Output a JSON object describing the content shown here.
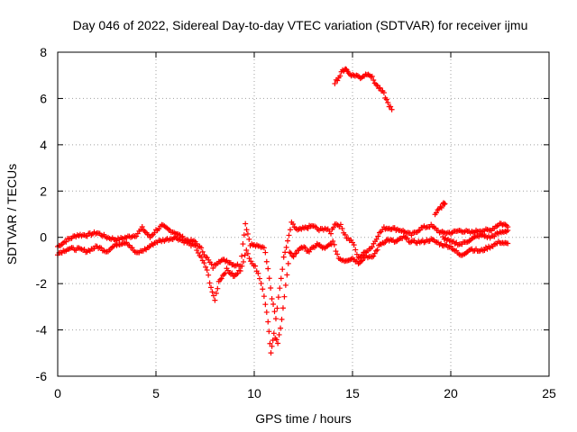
{
  "chart_data": {
    "type": "scatter",
    "title": "Day 046 of 2022, Sidereal Day-to-day VTEC variation (SDTVAR) for receiver ijmu",
    "xlabel": "GPS time / hours",
    "ylabel": "SDTVAR / TECUs",
    "xlim": [
      0,
      25
    ],
    "ylim": [
      -6,
      8
    ],
    "xticks": [
      0,
      5,
      10,
      15,
      20,
      25
    ],
    "yticks": [
      -6,
      -4,
      -2,
      0,
      2,
      4,
      6,
      8
    ],
    "grid": true,
    "marker": "+",
    "series": [
      {
        "name": "SDTVAR",
        "color": "#ff0000",
        "segments": [
          {
            "name": "main-upper",
            "points": [
              [
                0,
                -0.4
              ],
              [
                0.5,
                -0.1
              ],
              [
                1,
                0.1
              ],
              [
                1.5,
                0.1
              ],
              [
                2,
                0.2
              ],
              [
                2.5,
                0.0
              ],
              [
                3,
                -0.1
              ],
              [
                3.5,
                0.0
              ],
              [
                4,
                0.1
              ],
              [
                4.3,
                0.4
              ],
              [
                4.7,
                0.0
              ],
              [
                5,
                0.3
              ],
              [
                5.3,
                0.5
              ],
              [
                5.7,
                0.3
              ],
              [
                6,
                0.2
              ],
              [
                6.5,
                -0.1
              ],
              [
                7,
                -0.2
              ],
              [
                7.3,
                -0.5
              ],
              [
                7.6,
                -0.9
              ],
              [
                7.9,
                -1.3
              ],
              [
                8.2,
                -1.0
              ],
              [
                8.6,
                -1.0
              ],
              [
                9,
                -1.2
              ],
              [
                9.3,
                -1.2
              ],
              [
                9.55,
                0.6
              ],
              [
                9.8,
                -0.3
              ],
              [
                10.2,
                -0.4
              ],
              [
                10.5,
                -0.4
              ],
              [
                10.7,
                -1.3
              ],
              [
                10.9,
                -2.6
              ],
              [
                11.1,
                -3.5
              ],
              [
                11.3,
                -2.2
              ],
              [
                11.5,
                -0.9
              ],
              [
                11.7,
                -0.2
              ],
              [
                11.9,
                0.6
              ],
              [
                12.2,
                0.3
              ],
              [
                12.6,
                0.4
              ],
              [
                13,
                0.5
              ],
              [
                13.3,
                0.3
              ],
              [
                13.6,
                0.4
              ],
              [
                13.9,
                0.2
              ],
              [
                14.1,
                0.6
              ],
              [
                14.4,
                0.5
              ],
              [
                14.7,
                0.0
              ],
              [
                15,
                -0.2
              ],
              [
                15.3,
                -0.9
              ],
              [
                15.7,
                -0.6
              ],
              [
                16,
                -0.4
              ],
              [
                16.3,
                0.1
              ],
              [
                16.6,
                0.4
              ],
              [
                17,
                0.4
              ],
              [
                17.5,
                0.3
              ],
              [
                18,
                0.1
              ],
              [
                18.5,
                0.4
              ],
              [
                19,
                0.5
              ],
              [
                19.5,
                0.2
              ],
              [
                20,
                0.2
              ],
              [
                20.5,
                0.3
              ],
              [
                21,
                0.2
              ],
              [
                21.5,
                0.3
              ],
              [
                22,
                0.3
              ],
              [
                22.5,
                0.6
              ],
              [
                22.9,
                0.5
              ]
            ]
          },
          {
            "name": "main-lower",
            "points": [
              [
                0,
                -0.7
              ],
              [
                0.5,
                -0.5
              ],
              [
                1,
                -0.5
              ],
              [
                1.5,
                -0.6
              ],
              [
                2,
                -0.4
              ],
              [
                2.5,
                -0.6
              ],
              [
                3,
                -0.3
              ],
              [
                3.5,
                -0.2
              ],
              [
                4,
                -0.7
              ],
              [
                4.5,
                -0.5
              ],
              [
                5,
                -0.2
              ],
              [
                5.5,
                -0.1
              ],
              [
                6,
                0.0
              ],
              [
                6.5,
                -0.2
              ],
              [
                7,
                -0.4
              ],
              [
                7.3,
                -0.9
              ],
              [
                7.6,
                -1.4
              ],
              [
                7.8,
                -2.2
              ],
              [
                8,
                -2.7
              ],
              [
                8.2,
                -1.9
              ],
              [
                8.6,
                -1.4
              ],
              [
                9,
                -1.7
              ],
              [
                9.3,
                -1.4
              ],
              [
                9.6,
                -0.6
              ],
              [
                9.9,
                -1.1
              ],
              [
                10.2,
                -1.5
              ],
              [
                10.5,
                -2.5
              ],
              [
                10.7,
                -3.6
              ],
              [
                10.85,
                -5.0
              ],
              [
                11,
                -4.2
              ],
              [
                11.2,
                -4.6
              ],
              [
                11.4,
                -3.5
              ],
              [
                11.6,
                -2.1
              ],
              [
                11.8,
                -0.7
              ],
              [
                12,
                -0.8
              ],
              [
                12.4,
                -0.4
              ],
              [
                12.8,
                -0.6
              ],
              [
                13.2,
                -0.3
              ],
              [
                13.6,
                -0.5
              ],
              [
                14,
                -0.2
              ],
              [
                14.3,
                -0.9
              ],
              [
                14.6,
                -1.0
              ],
              [
                15,
                -0.9
              ],
              [
                15.3,
                -1.1
              ],
              [
                15.7,
                -0.8
              ],
              [
                16,
                -0.9
              ],
              [
                16.4,
                -0.3
              ],
              [
                16.8,
                -0.1
              ],
              [
                17.2,
                -0.2
              ],
              [
                17.6,
                0.0
              ],
              [
                18,
                -0.2
              ],
              [
                18.5,
                -0.2
              ],
              [
                19,
                -0.1
              ],
              [
                19.5,
                -0.3
              ],
              [
                20,
                -0.4
              ],
              [
                20.5,
                -0.8
              ],
              [
                21,
                -0.5
              ],
              [
                21.5,
                -0.6
              ],
              [
                22,
                -0.4
              ],
              [
                22.5,
                -0.2
              ],
              [
                22.9,
                -0.3
              ]
            ]
          },
          {
            "name": "evening-middle",
            "points": [
              [
                19.6,
                0.0
              ],
              [
                20,
                -0.2
              ],
              [
                20.5,
                -0.3
              ],
              [
                21,
                -0.1
              ],
              [
                21.5,
                0.1
              ],
              [
                22,
                0.0
              ],
              [
                22.5,
                0.2
              ],
              [
                22.9,
                0.3
              ]
            ]
          },
          {
            "name": "short-rise",
            "points": [
              [
                19.2,
                1.0
              ],
              [
                19.4,
                1.2
              ],
              [
                19.6,
                1.4
              ],
              [
                19.7,
                1.5
              ]
            ]
          },
          {
            "name": "upper-arc",
            "points": [
              [
                14.1,
                6.7
              ],
              [
                14.3,
                6.9
              ],
              [
                14.5,
                7.2
              ],
              [
                14.65,
                7.3
              ],
              [
                14.8,
                7.1
              ],
              [
                15,
                7.0
              ],
              [
                15.2,
                7.0
              ],
              [
                15.4,
                6.9
              ],
              [
                15.6,
                7.0
              ],
              [
                15.8,
                7.1
              ],
              [
                16,
                6.9
              ],
              [
                16.2,
                6.6
              ],
              [
                16.4,
                6.4
              ],
              [
                16.6,
                6.2
              ],
              [
                16.8,
                5.8
              ],
              [
                17,
                5.5
              ]
            ]
          }
        ]
      }
    ]
  }
}
